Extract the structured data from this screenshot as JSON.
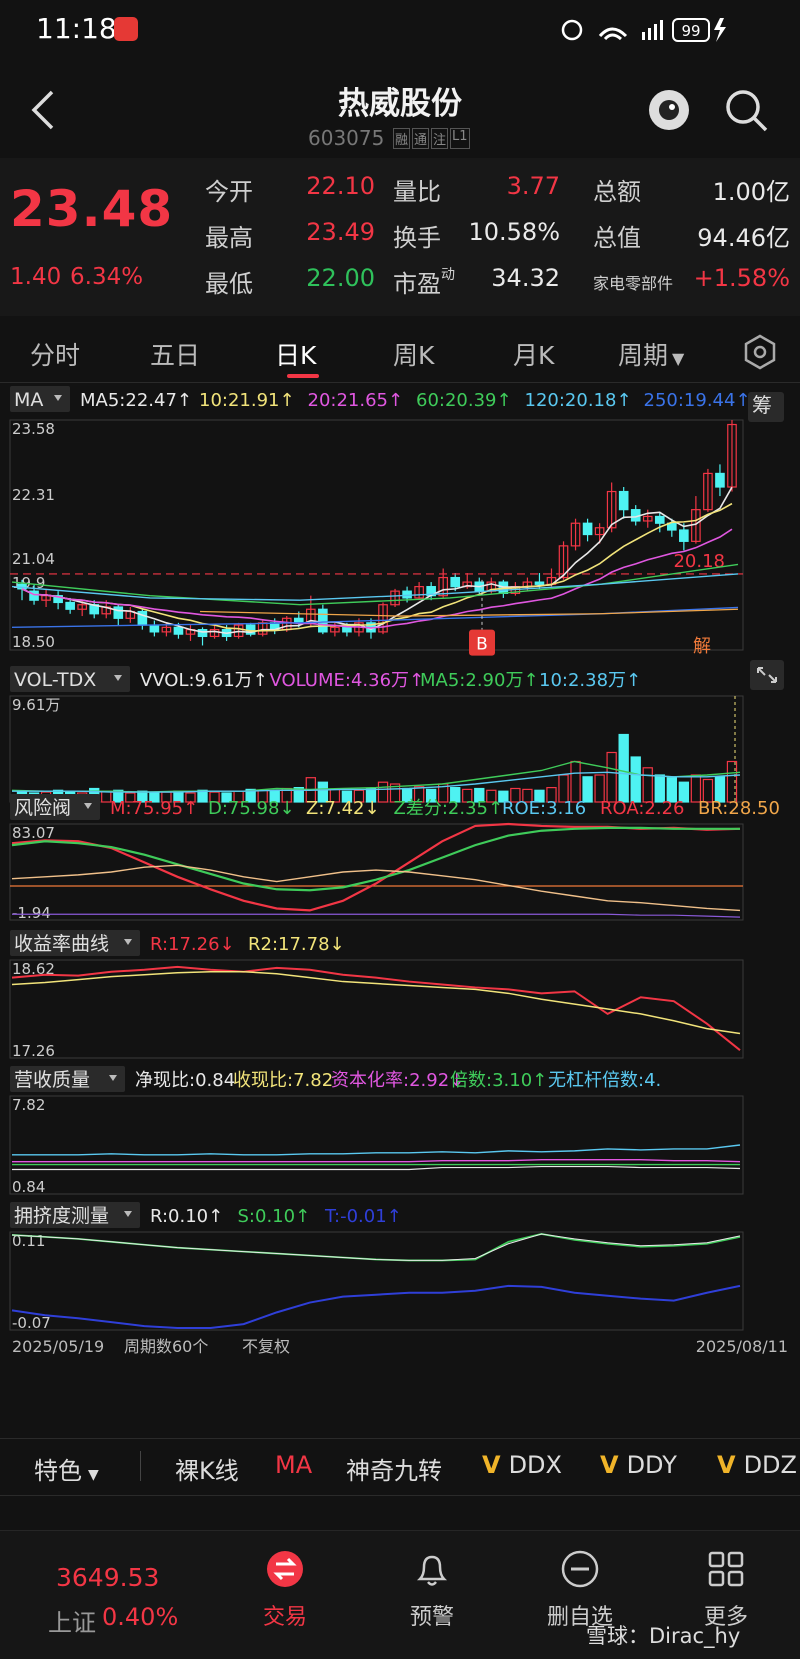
{
  "status_bar": {
    "time": "11:18",
    "battery": "99"
  },
  "header": {
    "title": "热威股份",
    "code": "603075",
    "badges": [
      "融",
      "通",
      "注",
      "L1"
    ]
  },
  "quote": {
    "price": "23.48",
    "change": "1.40",
    "change_pct": "6.34%",
    "stats": [
      {
        "label": "今开",
        "value": "22.10",
        "color": "#f23645"
      },
      {
        "label": "量比",
        "value": "3.77",
        "color": "#f23645"
      },
      {
        "label": "总额",
        "value": "1.00亿",
        "color": "#eaeaea"
      },
      {
        "label": "最高",
        "value": "23.49",
        "color": "#f23645"
      },
      {
        "label": "换手",
        "value": "10.58%",
        "color": "#eaeaea"
      },
      {
        "label": "总值",
        "value": "94.46亿",
        "color": "#eaeaea"
      },
      {
        "label": "最低",
        "value": "22.00",
        "color": "#2fc15b"
      },
      {
        "label": "市盈",
        "value": "34.32",
        "color": "#eaeaea"
      },
      {
        "label": "家电零部件",
        "value": "+1.58%",
        "color": "#f23645"
      }
    ],
    "pe_sup": "动"
  },
  "tabs": [
    "分时",
    "五日",
    "日K",
    "周K",
    "月K",
    "周期"
  ],
  "ma_legend": {
    "selector": "MA",
    "items": [
      {
        "text": "MA5:22.47↑",
        "color": "#e8e8e8"
      },
      {
        "text": "10:21.91↑",
        "color": "#f1e37a"
      },
      {
        "text": "20:21.65↑",
        "color": "#e057e0"
      },
      {
        "text": "60:20.39↑",
        "color": "#3fcb5a"
      },
      {
        "text": "120:20.18↑",
        "color": "#5ac8f0"
      },
      {
        "text": "250:19.44↑",
        "color": "#3a73e8"
      }
    ],
    "chip": "筹"
  },
  "kline": {
    "price_labels": [
      "23.58",
      "22.31",
      "21.04",
      "18.50"
    ],
    "ref_price": "20.18",
    "buy_mark": "B",
    "jie": "解",
    "first_tick": "19.9"
  },
  "vol": {
    "selector": "VOL-TDX",
    "items": [
      {
        "text": "VVOL:9.61万↑",
        "color": "#e8e8e8"
      },
      {
        "text": "VOLUME:4.36万↑",
        "color": "#e057e0"
      },
      {
        "text": "MA5:2.90万↑",
        "color": "#3fcb5a"
      },
      {
        "text": "10:2.38万↑",
        "color": "#5ac8f0"
      }
    ],
    "max_label": "9.61万"
  },
  "risk": {
    "selector": "风险阀",
    "items": [
      {
        "text": "M:75.95↑",
        "color": "#f23645"
      },
      {
        "text": "D:75.98↓",
        "color": "#3fcb5a"
      },
      {
        "text": "Z:7.42↓",
        "color": "#f1e37a"
      },
      {
        "text": "Z差分:2.35↑",
        "color": "#3fcb5a"
      },
      {
        "text": "ROE:3.16",
        "color": "#5ac8f0"
      },
      {
        "text": "ROA:2.26",
        "color": "#f23645"
      },
      {
        "text": "BR:28.50",
        "color": "#f0a64a"
      }
    ],
    "max_label": "83.07",
    "min_label": "-1.94"
  },
  "yield": {
    "selector": "收益率曲线",
    "items": [
      {
        "text": "R:17.26↓",
        "color": "#f23645"
      },
      {
        "text": "R2:17.78↓",
        "color": "#f1e37a"
      }
    ],
    "max_label": "18.62",
    "min_label": "17.26"
  },
  "revenue": {
    "selector": "营收质量",
    "items": [
      {
        "text": "净现比:0.84",
        "color": "#e8e8e8"
      },
      {
        "text": "收现比:7.82",
        "color": "#f1e37a"
      },
      {
        "text": "资本化率:2.92↓",
        "color": "#e057e0"
      },
      {
        "text": "倍数:3.10↑",
        "color": "#3fcb5a"
      },
      {
        "text": "无杠杆倍数:4.",
        "color": "#5ac8f0"
      }
    ],
    "max_label": "7.82",
    "min_label": "0.84"
  },
  "crowd": {
    "selector": "拥挤度测量",
    "items": [
      {
        "text": "R:0.10↑",
        "color": "#e8e8e8"
      },
      {
        "text": "S:0.10↑",
        "color": "#3fcb5a"
      },
      {
        "text": "T:-0.01↑",
        "color": "#2f3fd8"
      }
    ],
    "max_label": "0.11",
    "min_label": "-0.07"
  },
  "x_axis": {
    "start": "2025/05/19",
    "period": "周期数60个",
    "adjust": "不复权",
    "end": "2025/08/11"
  },
  "feature_bar": {
    "selector": "特色",
    "items": [
      "裸K线",
      "MA",
      "神奇九转",
      "DDX",
      "DDY",
      "DDZ"
    ]
  },
  "bottom_nav": {
    "index_value": "3649.53",
    "index_name": "上证",
    "index_pct": "0.40%",
    "items": [
      {
        "label": "交易"
      },
      {
        "label": "预警"
      },
      {
        "label": "删自选"
      },
      {
        "label": "更多"
      }
    ]
  },
  "watermark": "雪球：Dirac_hy"
}
